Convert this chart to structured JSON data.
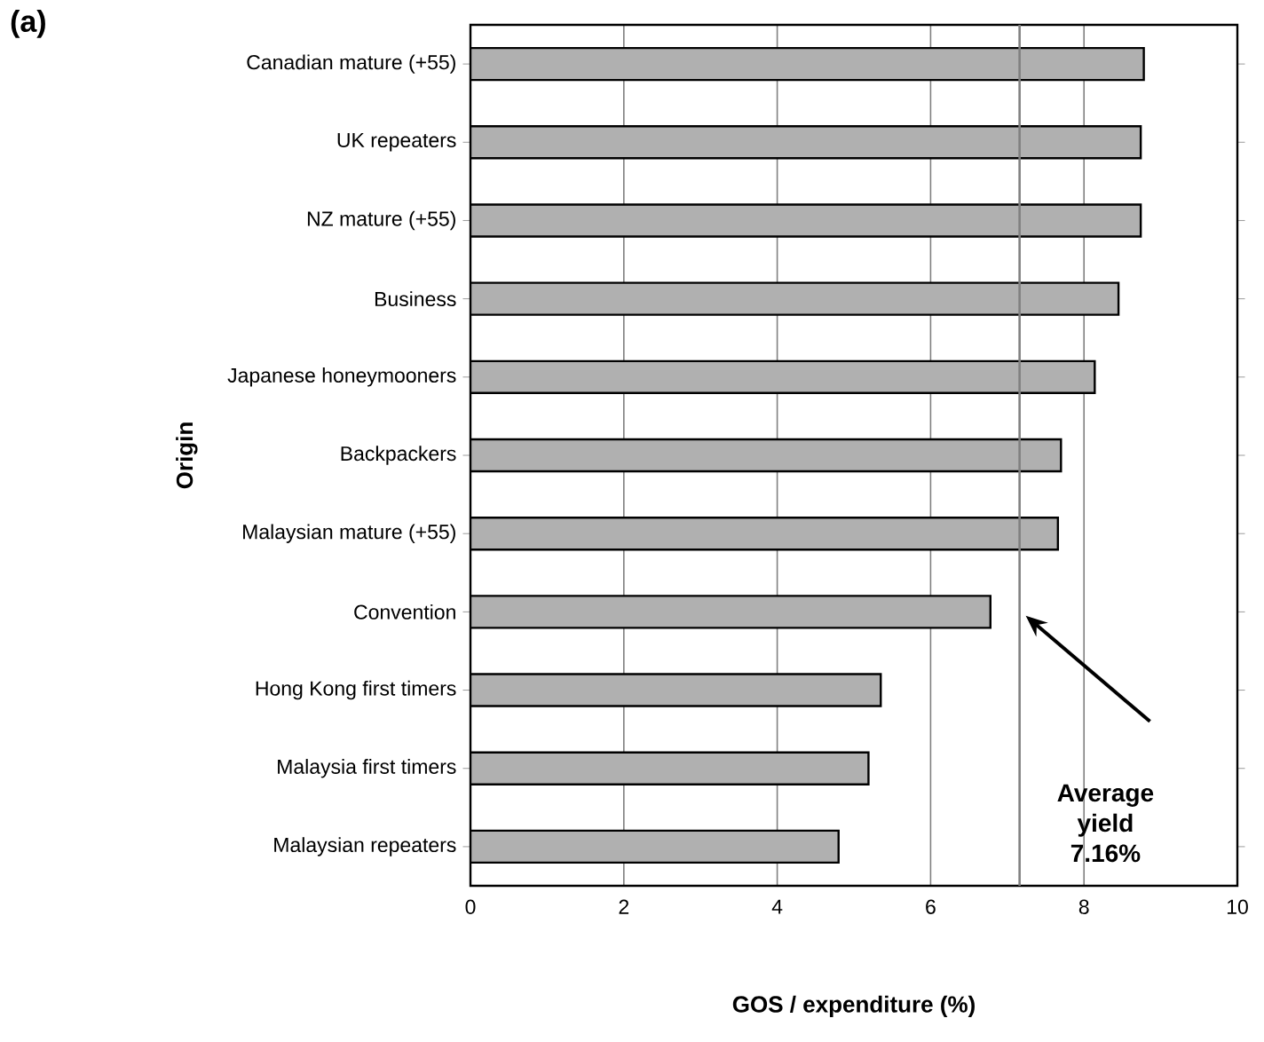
{
  "chart_data": {
    "type": "bar",
    "orientation": "horizontal",
    "title": "(a)",
    "xlabel": "GOS / expenditure (%)",
    "ylabel": "Origin",
    "categories": [
      "Canadian mature (+55)",
      "UK repeaters",
      "NZ  mature (+55)",
      "Business",
      "Japanese honeymooners",
      "Backpackers",
      "Malaysian mature (+55)",
      "Convention",
      "Hong Kong first timers",
      "Malaysia first timers",
      "Malaysian repeaters"
    ],
    "values": [
      8.78,
      8.74,
      8.74,
      8.45,
      8.14,
      7.7,
      7.66,
      6.78,
      5.35,
      5.19,
      4.8
    ],
    "color": "#b0b0b0",
    "xlim": [
      0,
      10
    ],
    "xticks": [
      0,
      2,
      4,
      6,
      8,
      10
    ],
    "grid": "x",
    "ref_lines": [
      {
        "axis": "x",
        "value": 7.16,
        "label": "Average yield 7.16%",
        "color": "#808080"
      }
    ]
  }
}
